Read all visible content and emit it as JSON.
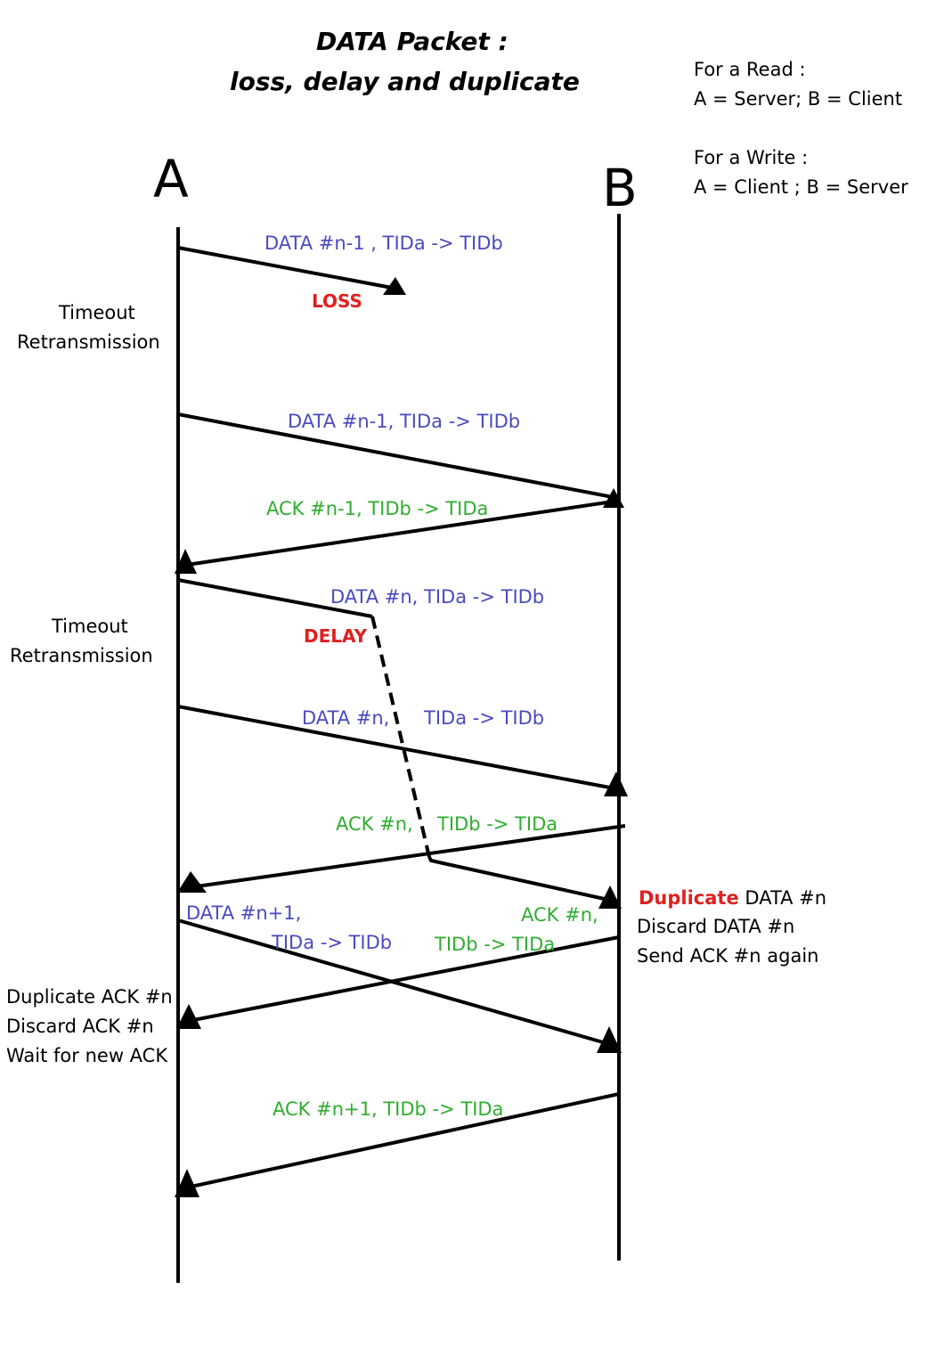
{
  "title": {
    "line1": "DATA Packet :",
    "line2": "loss, delay and duplicate"
  },
  "legend": {
    "read_heading": "For a Read :",
    "read_roles": "A = Server;  B = Client",
    "write_heading": "For a Write :",
    "write_roles": "A = Client ;  B = Server"
  },
  "hosts": {
    "a": "A",
    "b": "B"
  },
  "messages": {
    "m1": "DATA #n-1 , TIDa -> TIDb",
    "m2": "DATA #n-1, TIDa -> TIDb",
    "m3": "ACK #n-1, TIDb -> TIDa",
    "m4": "DATA #n, TIDa -> TIDb",
    "m5a": "DATA #n,",
    "m5b": "TIDa -> TIDb",
    "m6a": "ACK #n,",
    "m6b": "TIDb -> TIDa",
    "m7a": "DATA #n+1,",
    "m7b": "TIDa -> TIDb",
    "m8a": "ACK #n,",
    "m8b": "TIDb -> TIDa",
    "m9": "ACK #n+1, TIDb -> TIDa"
  },
  "events": {
    "loss": "LOSS",
    "delay": "DELAY",
    "timeout1_line1": "Timeout",
    "timeout1_line2": "Retransmission",
    "timeout2_line1": "Timeout",
    "timeout2_line2": "Retransmission",
    "dup_data_word": "Duplicate",
    "dup_data_rest": "DATA #n",
    "dup_data_discard": "Discard DATA #n",
    "dup_data_send": "Send ACK #n again",
    "dup_ack_line1": "Duplicate ACK #n",
    "dup_ack_line2": "Discard ACK #n",
    "dup_ack_line3": "Wait for new ACK"
  },
  "colors": {
    "data": "#4a4ac0",
    "ack": "#2fad2f",
    "event": "#e02020",
    "line": "#000000"
  }
}
